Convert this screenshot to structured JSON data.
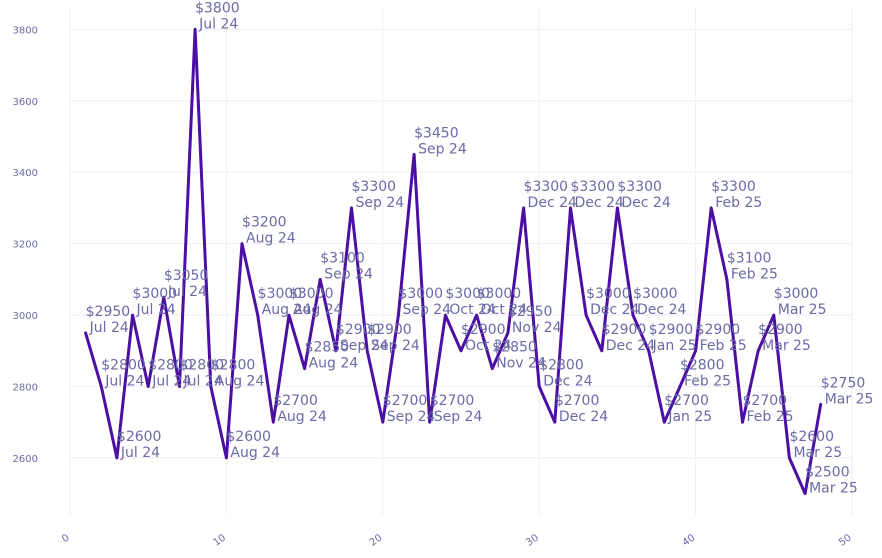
{
  "chart_data": {
    "type": "line",
    "title": "",
    "xlabel": "",
    "ylabel": "",
    "xlim": [
      0,
      50
    ],
    "ylim": [
      2440,
      3860
    ],
    "grid": true,
    "legend": "none",
    "line_color": "#4b0fa3",
    "text_color": "#6b6ba6",
    "grid_color": "#eeeef4",
    "x_ticks": [
      0,
      10,
      20,
      30,
      40,
      50
    ],
    "y_ticks": [
      2600,
      2800,
      3000,
      3200,
      3400,
      3600,
      3800
    ],
    "points": [
      {
        "x": 1,
        "y": 2950,
        "price": "$2950",
        "date": "Jul 24"
      },
      {
        "x": 2,
        "y": 2800,
        "price": "$2800",
        "date": "Jul 24"
      },
      {
        "x": 3,
        "y": 2600,
        "price": "$2600",
        "date": "Jul 24"
      },
      {
        "x": 4,
        "y": 3000,
        "price": "$3000",
        "date": "Jul 24"
      },
      {
        "x": 5,
        "y": 2800,
        "price": "$2800",
        "date": "Jul 24"
      },
      {
        "x": 6,
        "y": 3050,
        "price": "$3050",
        "date": "Jul 24"
      },
      {
        "x": 7,
        "y": 2800,
        "price": "$2800",
        "date": "Jul 24"
      },
      {
        "x": 8,
        "y": 3800,
        "price": "$3800",
        "date": "Jul 24"
      },
      {
        "x": 9,
        "y": 2800,
        "price": "$2800",
        "date": "Aug 24"
      },
      {
        "x": 10,
        "y": 2600,
        "price": "$2600",
        "date": "Aug 24"
      },
      {
        "x": 11,
        "y": 3200,
        "price": "$3200",
        "date": "Aug 24"
      },
      {
        "x": 12,
        "y": 3000,
        "price": "$3000",
        "date": "Aug 24"
      },
      {
        "x": 13,
        "y": 2700,
        "price": "$2700",
        "date": "Aug 24"
      },
      {
        "x": 14,
        "y": 3000,
        "price": "$3000",
        "date": "Aug 24"
      },
      {
        "x": 15,
        "y": 2850,
        "price": "$2850",
        "date": "Aug 24"
      },
      {
        "x": 16,
        "y": 3100,
        "price": "$3100",
        "date": "Sep 24"
      },
      {
        "x": 17,
        "y": 2900,
        "price": "$2900",
        "date": "Sep 24"
      },
      {
        "x": 18,
        "y": 3300,
        "price": "$3300",
        "date": "Sep 24"
      },
      {
        "x": 19,
        "y": 2900,
        "price": "$2900",
        "date": "Sep 24"
      },
      {
        "x": 20,
        "y": 2700,
        "price": "$2700",
        "date": "Sep 24"
      },
      {
        "x": 21,
        "y": 3000,
        "price": "$3000",
        "date": "Sep 24"
      },
      {
        "x": 22,
        "y": 3450,
        "price": "$3450",
        "date": "Sep 24"
      },
      {
        "x": 23,
        "y": 2700,
        "price": "$2700",
        "date": "Sep 24"
      },
      {
        "x": 24,
        "y": 3000,
        "price": "$3000",
        "date": "Oct 24"
      },
      {
        "x": 25,
        "y": 2900,
        "price": "$2900",
        "date": "Oct 24"
      },
      {
        "x": 26,
        "y": 3000,
        "price": "$3000",
        "date": "Oct 24"
      },
      {
        "x": 27,
        "y": 2850,
        "price": "$2850",
        "date": "Nov 24"
      },
      {
        "x": 28,
        "y": 2950,
        "price": "$2950",
        "date": "Nov 24"
      },
      {
        "x": 29,
        "y": 3300,
        "price": "$3300",
        "date": "Dec 24"
      },
      {
        "x": 30,
        "y": 2800,
        "price": "$2800",
        "date": "Dec 24"
      },
      {
        "x": 31,
        "y": 2700,
        "price": "$2700",
        "date": "Dec 24"
      },
      {
        "x": 32,
        "y": 3300,
        "price": "$3300",
        "date": "Dec 24"
      },
      {
        "x": 33,
        "y": 3000,
        "price": "$3000",
        "date": "Dec 24"
      },
      {
        "x": 34,
        "y": 2900,
        "price": "$2900",
        "date": "Dec 24"
      },
      {
        "x": 35,
        "y": 3300,
        "price": "$3300",
        "date": "Dec 24"
      },
      {
        "x": 36,
        "y": 3000,
        "price": "$3000",
        "date": "Dec 24"
      },
      {
        "x": 37,
        "y": 2900,
        "price": "$2900",
        "date": "Jan 25"
      },
      {
        "x": 38,
        "y": 2700,
        "price": "$2700",
        "date": "Jan 25"
      },
      {
        "x": 39,
        "y": 2800,
        "price": "$2800",
        "date": "Feb 25"
      },
      {
        "x": 40,
        "y": 2900,
        "price": "$2900",
        "date": "Feb 25"
      },
      {
        "x": 41,
        "y": 3300,
        "price": "$3300",
        "date": "Feb 25"
      },
      {
        "x": 42,
        "y": 3100,
        "price": "$3100",
        "date": "Feb 25"
      },
      {
        "x": 43,
        "y": 2700,
        "price": "$2700",
        "date": "Feb 25"
      },
      {
        "x": 44,
        "y": 2900,
        "price": "$2900",
        "date": "Mar 25"
      },
      {
        "x": 45,
        "y": 3000,
        "price": "$3000",
        "date": "Mar 25"
      },
      {
        "x": 46,
        "y": 2600,
        "price": "$2600",
        "date": "Mar 25"
      },
      {
        "x": 47,
        "y": 2500,
        "price": "$2500",
        "date": "Mar 25"
      },
      {
        "x": 48,
        "y": 2750,
        "price": "$2750",
        "date": "Mar 25"
      }
    ]
  }
}
